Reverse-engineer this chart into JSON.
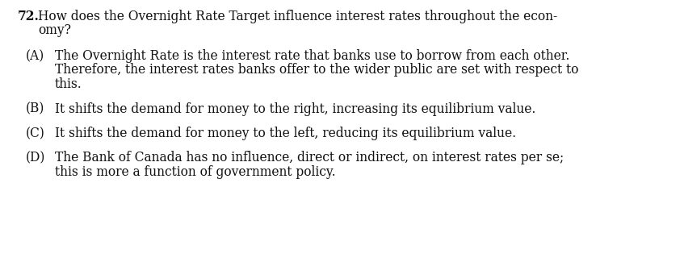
{
  "background_color": "#ffffff",
  "text_color": "#111111",
  "question_number": "72.",
  "q_line1": "How does the Overnight Rate Target influence interest rates throughout the econ-",
  "q_line2": "omy?",
  "opt_A_label": "(A)",
  "opt_A_line1": "The Overnight Rate is the interest rate that banks use to borrow from each other.",
  "opt_A_line2": "Therefore, the interest rates banks offer to the wider public are set with respect to",
  "opt_A_line3": "this.",
  "opt_B_label": "(B)",
  "opt_B_line1": "It shifts the demand for money to the right, increasing its equilibrium value.",
  "opt_C_label": "(C)",
  "opt_C_line1": "It shifts the demand for money to the left, reducing its equilibrium value.",
  "opt_D_label": "(D)",
  "opt_D_line1": "The Bank of Canada has no influence, direct or indirect, on interest rates per se;",
  "opt_D_line2": "this is more a function of government policy.",
  "font_size": 11.2,
  "font_family": "serif",
  "fig_width": 8.42,
  "fig_height": 3.25,
  "dpi": 100
}
